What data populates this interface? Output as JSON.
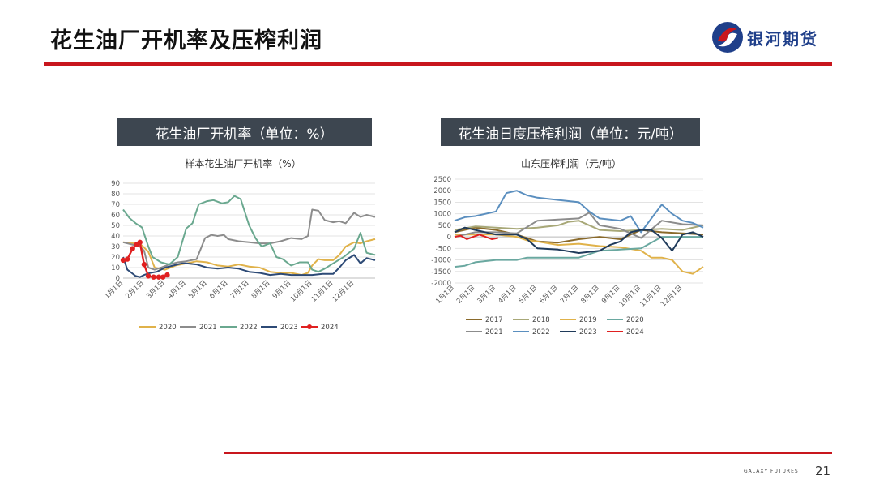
{
  "page": {
    "title": "花生油厂开机率及压榨利润",
    "logo_text": "银河期货",
    "footer_brand": "GALAXY FUTURES",
    "page_number": "21",
    "accent_color": "#c8161d"
  },
  "left": {
    "header": "花生油厂开机率（单位：%）",
    "title": "样本花生油厂开机率（%）"
  },
  "right": {
    "header": "花生油日度压榨利润（单位：元/吨）",
    "title": "山东压榨利润（元/吨）"
  },
  "chart_data": [
    {
      "type": "line",
      "title": "样本花生油厂开机率（%）",
      "xlabel": "",
      "ylabel": "",
      "x_ticks": [
        "1月1日",
        "2月1日",
        "3月1日",
        "4月1日",
        "5月1日",
        "6月1日",
        "7月1日",
        "8月1日",
        "9月1日",
        "10月1日",
        "11月1日",
        "12月1日"
      ],
      "y_ticks": [
        0,
        10,
        20,
        30,
        40,
        50,
        60,
        70,
        80,
        90
      ],
      "ylim": [
        0,
        90
      ],
      "xlim": [
        0,
        12
      ],
      "grid": true,
      "legend": "bottom",
      "series": [
        {
          "name": "2020",
          "color": "#e0b24a",
          "markers": false,
          "x": [
            0,
            0.5,
            0.9,
            1.2,
            1.5,
            2.0,
            2.5,
            3.0,
            3.5,
            4.0,
            4.5,
            5.0,
            5.5,
            6.0,
            6.5,
            7.0,
            7.5,
            8.0,
            8.5,
            8.8,
            9.0,
            9.3,
            9.6,
            10.0,
            10.3,
            10.6,
            11.0,
            11.3,
            11.6,
            12.0
          ],
          "y": [
            34,
            33,
            31,
            25,
            10,
            8,
            12,
            14,
            16,
            15,
            12,
            11,
            13,
            11,
            10,
            6,
            5,
            5,
            3,
            5,
            12,
            18,
            17,
            17,
            22,
            30,
            34,
            33,
            35,
            37
          ]
        },
        {
          "name": "2021",
          "color": "#8c8c8c",
          "markers": false,
          "x": [
            0,
            0.4,
            0.8,
            1.0,
            1.2,
            1.5,
            1.8,
            2.2,
            2.6,
            3.0,
            3.5,
            3.9,
            4.2,
            4.5,
            4.8,
            5.0,
            5.5,
            6.0,
            6.5,
            7.0,
            7.5,
            8.0,
            8.5,
            8.8,
            9.0,
            9.3,
            9.6,
            10.0,
            10.3,
            10.6,
            11.0,
            11.3,
            11.6,
            12.0
          ],
          "y": [
            34,
            32,
            30,
            26,
            10,
            8,
            10,
            13,
            15,
            16,
            18,
            38,
            41,
            40,
            41,
            37,
            35,
            34,
            33,
            33,
            35,
            38,
            37,
            40,
            65,
            64,
            55,
            53,
            54,
            52,
            62,
            58,
            60,
            58
          ]
        },
        {
          "name": "2022",
          "color": "#6aa88f",
          "markers": false,
          "x": [
            0,
            0.3,
            0.6,
            0.9,
            1.2,
            1.4,
            1.8,
            2.2,
            2.6,
            3.0,
            3.3,
            3.6,
            4.0,
            4.3,
            4.7,
            5.0,
            5.3,
            5.6,
            6.0,
            6.3,
            6.6,
            7.0,
            7.3,
            7.6,
            8.0,
            8.4,
            8.8,
            9.0,
            9.3,
            9.6,
            10.0,
            10.5,
            11.0,
            11.3,
            11.6,
            12.0
          ],
          "y": [
            65,
            57,
            52,
            48,
            30,
            20,
            15,
            13,
            20,
            47,
            52,
            70,
            73,
            74,
            71,
            72,
            78,
            75,
            50,
            38,
            30,
            33,
            20,
            18,
            12,
            15,
            15,
            8,
            6,
            9,
            14,
            20,
            28,
            43,
            24,
            22
          ]
        },
        {
          "name": "2023",
          "color": "#2d4a76",
          "markers": false,
          "x": [
            0,
            0.2,
            0.4,
            0.6,
            0.8,
            1.0,
            1.3,
            1.6,
            2.0,
            2.4,
            2.8,
            3.0,
            3.5,
            4.0,
            4.5,
            5.0,
            5.5,
            6.0,
            6.5,
            7.0,
            7.5,
            8.0,
            8.5,
            9.0,
            9.5,
            10.0,
            10.3,
            10.6,
            11.0,
            11.3,
            11.6,
            12.0
          ],
          "y": [
            20,
            8,
            5,
            2,
            1,
            3,
            5,
            6,
            10,
            12,
            14,
            14,
            13,
            10,
            9,
            10,
            9,
            6,
            5,
            3,
            4,
            3,
            3,
            3,
            4,
            4,
            10,
            17,
            22,
            14,
            19,
            17
          ]
        },
        {
          "name": "2024",
          "color": "#e02020",
          "markers": true,
          "x": [
            0,
            0.2,
            0.45,
            0.65,
            0.8,
            1.0,
            1.2,
            1.45,
            1.7,
            1.9,
            2.1
          ],
          "y": [
            17,
            18,
            28,
            32,
            34,
            13,
            2,
            1,
            1,
            1,
            3
          ]
        }
      ]
    },
    {
      "type": "line",
      "title": "山东压榨利润（元/吨）",
      "xlabel": "",
      "ylabel": "",
      "x_ticks": [
        "1月1日",
        "2月1日",
        "3月1日",
        "4月1日",
        "5月1日",
        "6月1日",
        "7月1日",
        "8月1日",
        "9月1日",
        "10月1日",
        "11月1日",
        "12月1日"
      ],
      "y_ticks": [
        -2000,
        -1500,
        -1000,
        -500,
        0,
        500,
        1000,
        1500,
        2000,
        2500
      ],
      "ylim": [
        -2000,
        2500
      ],
      "xlim": [
        0,
        12
      ],
      "grid": true,
      "legend": "bottom",
      "series": [
        {
          "name": "2017",
          "color": "#8a6a2b",
          "x": [
            0,
            1,
            2,
            3,
            4,
            5,
            6,
            7,
            8,
            9,
            10,
            11,
            12
          ],
          "y": [
            200,
            400,
            300,
            100,
            -200,
            -250,
            -100,
            0,
            -100,
            300,
            200,
            150,
            100
          ]
        },
        {
          "name": "2018",
          "color": "#a8a878",
          "x": [
            0,
            1,
            2,
            3,
            4,
            5,
            5.5,
            6,
            7,
            8,
            9,
            10,
            11,
            12
          ],
          "y": [
            300,
            450,
            400,
            350,
            400,
            500,
            650,
            700,
            300,
            250,
            300,
            350,
            300,
            500
          ]
        },
        {
          "name": "2019",
          "color": "#e0b24a",
          "x": [
            0,
            1,
            2,
            3,
            3.5,
            4,
            5,
            6,
            7,
            8,
            9,
            9.5,
            10,
            10.5,
            11,
            11.5,
            12
          ],
          "y": [
            100,
            100,
            100,
            0,
            -150,
            -200,
            -350,
            -300,
            -400,
            -450,
            -600,
            -900,
            -900,
            -1000,
            -1500,
            -1600,
            -1300
          ]
        },
        {
          "name": "2020",
          "color": "#6aa8a0",
          "x": [
            0,
            0.5,
            1,
            2,
            3,
            3.5,
            4,
            5,
            6,
            7,
            8,
            9,
            10,
            11,
            12
          ],
          "y": [
            -1300,
            -1250,
            -1100,
            -1000,
            -1000,
            -900,
            -900,
            -900,
            -900,
            -600,
            -550,
            -500,
            0,
            0,
            0
          ]
        },
        {
          "name": "2021",
          "color": "#8c8c8c",
          "x": [
            0,
            1,
            2,
            3,
            4,
            5,
            6,
            6.5,
            7,
            8,
            9,
            10,
            11,
            12
          ],
          "y": [
            0,
            200,
            200,
            150,
            700,
            750,
            800,
            1050,
            500,
            350,
            -50,
            700,
            550,
            500
          ]
        },
        {
          "name": "2022",
          "color": "#5b8fbf",
          "x": [
            0,
            0.5,
            1,
            2,
            2.5,
            3,
            3.5,
            4,
            5,
            6,
            6.5,
            7,
            8,
            8.5,
            9,
            9.5,
            10,
            10.5,
            11,
            11.5,
            12
          ],
          "y": [
            700,
            850,
            900,
            1100,
            1900,
            2000,
            1800,
            1700,
            1600,
            1500,
            1100,
            800,
            700,
            900,
            200,
            800,
            1400,
            1000,
            700,
            600,
            400
          ]
        },
        {
          "name": "2023",
          "color": "#1f3a5a",
          "x": [
            0,
            0.5,
            1,
            2,
            3,
            3.5,
            4,
            5,
            6,
            7,
            7.5,
            8,
            8.5,
            9,
            9.5,
            10,
            10.5,
            11,
            11.5,
            12
          ],
          "y": [
            200,
            400,
            300,
            100,
            100,
            -100,
            -500,
            -550,
            -700,
            -600,
            -350,
            -200,
            200,
            300,
            300,
            -50,
            -600,
            100,
            200,
            0
          ]
        },
        {
          "name": "2024",
          "color": "#e02020",
          "x": [
            0,
            0.3,
            0.6,
            0.9,
            1.2,
            1.5,
            1.8,
            2.1
          ],
          "y": [
            0,
            50,
            -100,
            0,
            100,
            0,
            -100,
            -50
          ]
        }
      ]
    }
  ]
}
